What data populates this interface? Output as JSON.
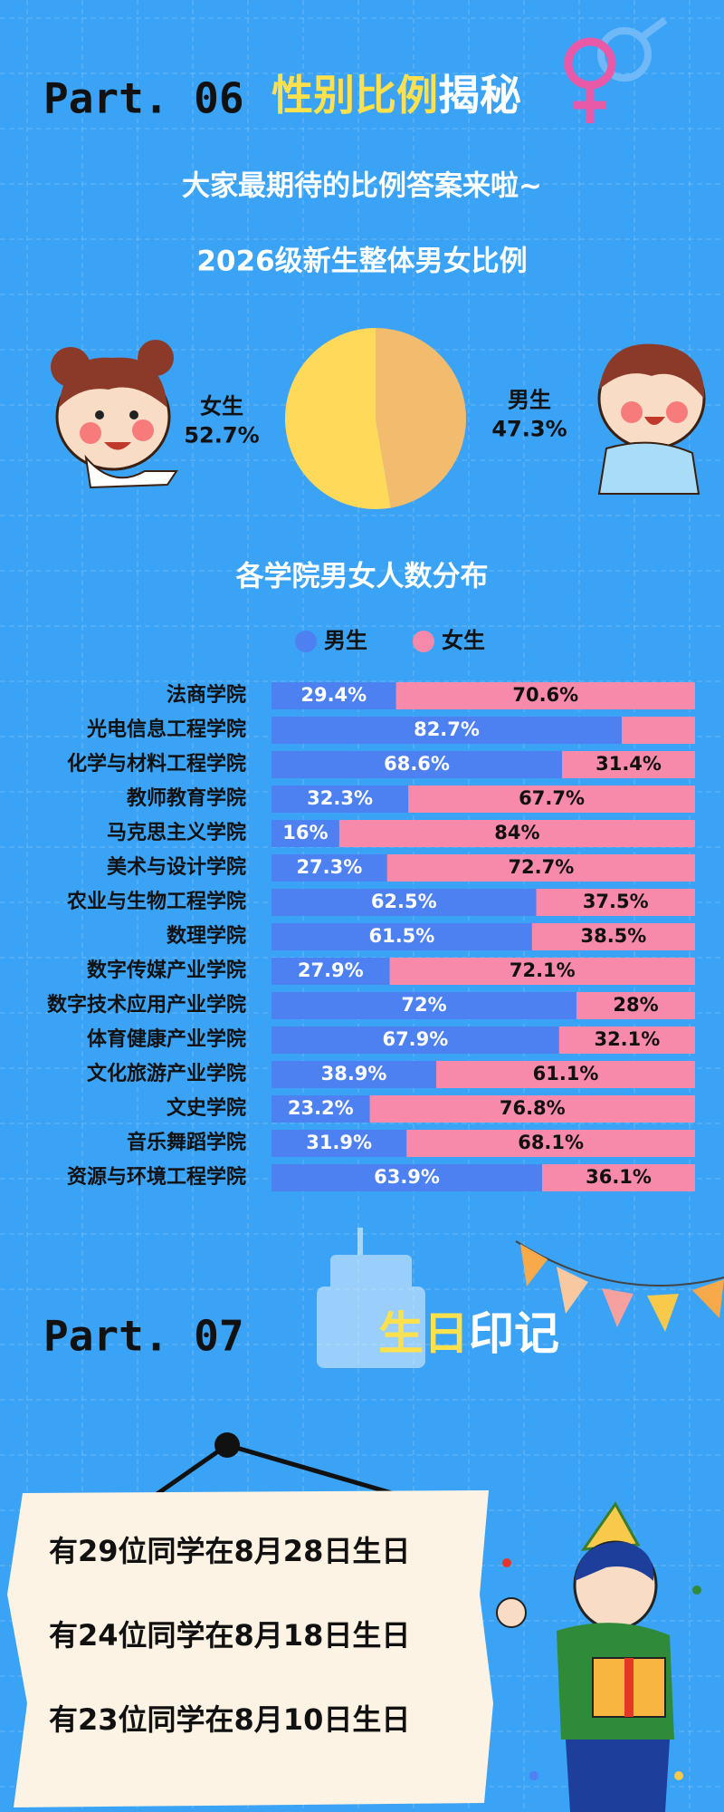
{
  "part06": {
    "label": "Part. 06",
    "title_highlight": "性别比例",
    "title_rest": "揭秘",
    "subtitle": "大家最期待的比例答案来啦~"
  },
  "chart_data": [
    {
      "type": "pie",
      "title": "2026级新生整体男女比例",
      "categories": [
        "男生",
        "女生"
      ],
      "values": [
        47.3,
        52.7
      ],
      "value_labels": [
        "47.3%",
        "52.7%"
      ],
      "colors": [
        "#f2bb6e",
        "#ffd95a"
      ]
    },
    {
      "type": "bar",
      "orientation": "horizontal",
      "stacked": true,
      "title": "各学院男女人数分布",
      "xlim": [
        0,
        100
      ],
      "categories": [
        "法商学院",
        "光电信息工程学院",
        "化学与材料工程学院",
        "教师教育学院",
        "马克思主义学院",
        "美术与设计学院",
        "农业与生物工程学院",
        "数理学院",
        "数字传媒产业学院",
        "数字技术应用产业学院",
        "体育健康产业学院",
        "文化旅游产业学院",
        "文史学院",
        "音乐舞蹈学院",
        "资源与环境工程学院"
      ],
      "series": [
        {
          "name": "男生",
          "color": "#4d80f0",
          "values": [
            29.4,
            82.7,
            68.6,
            32.3,
            16,
            27.3,
            62.5,
            61.5,
            27.9,
            72,
            67.9,
            38.9,
            23.2,
            31.9,
            63.9
          ],
          "value_labels": [
            "29.4%",
            "82.7%",
            "68.6%",
            "32.3%",
            "16%",
            "27.3%",
            "62.5%",
            "61.5%",
            "27.9%",
            "72%",
            "67.9%",
            "38.9%",
            "23.2%",
            "31.9%",
            "63.9%"
          ]
        },
        {
          "name": "女生",
          "color": "#f78aab",
          "values": [
            70.6,
            17.3,
            31.4,
            67.7,
            84,
            72.7,
            37.5,
            38.5,
            72.1,
            28,
            32.1,
            61.1,
            76.8,
            68.1,
            36.1
          ],
          "value_labels": [
            "70.6%",
            null,
            "31.4%",
            "67.7%",
            "84%",
            "72.7%",
            "37.5%",
            "38.5%",
            "72.1%",
            "28%",
            "32.1%",
            "61.1%",
            "76.8%",
            "68.1%",
            "36.1%"
          ]
        }
      ],
      "legend": "top"
    }
  ],
  "part07": {
    "label": "Part. 07",
    "title_highlight": "生日",
    "title_rest": "印记",
    "items": [
      "有29位同学在8月28日生日",
      "有24位同学在8月18日生日",
      "有23位同学在8月10日生日"
    ]
  }
}
